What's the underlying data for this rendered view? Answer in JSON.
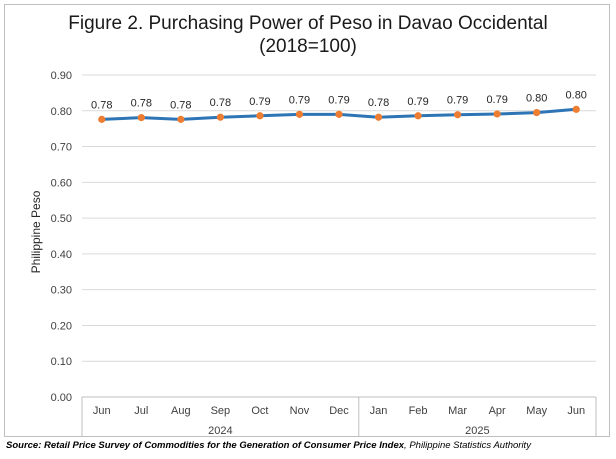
{
  "title_line1": "Figure 2. Purchasing Power of Peso in Davao Occidental",
  "title_line2": "(2018=100)",
  "source": {
    "prefix": "Source: Retail Price Survey of Commodities for the Generation of Consumer Price Index",
    "suffix": ", Philippine Statistics Authority"
  },
  "colors": {
    "line": "#2e75b6",
    "marker": "#ed7d31",
    "axis": "#bfbfbf"
  },
  "chart_data": {
    "type": "line",
    "title": "Figure 2. Purchasing Power of Peso in Davao Occidental (2018=100)",
    "ylabel": "Philippine Peso",
    "ylim": [
      0,
      0.9
    ],
    "ytick_labels": [
      "0.00",
      "0.10",
      "0.20",
      "0.30",
      "0.40",
      "0.50",
      "0.60",
      "0.70",
      "0.80",
      "0.90"
    ],
    "categories": [
      "Jun",
      "Jul",
      "Aug",
      "Sep",
      "Oct",
      "Nov",
      "Dec",
      "Jan",
      "Feb",
      "Mar",
      "Apr",
      "May",
      "Jun"
    ],
    "groups": [
      {
        "label": "2024",
        "count": 7
      },
      {
        "label": "2025",
        "count": 6
      }
    ],
    "values": [
      0.776,
      0.781,
      0.776,
      0.782,
      0.786,
      0.79,
      0.79,
      0.782,
      0.786,
      0.789,
      0.791,
      0.795,
      0.804
    ],
    "data_labels": [
      "0.78",
      "0.78",
      "0.78",
      "0.78",
      "0.79",
      "0.79",
      "0.79",
      "0.78",
      "0.79",
      "0.79",
      "0.79",
      "0.80",
      "0.80"
    ],
    "grid": true,
    "legend": "none"
  }
}
